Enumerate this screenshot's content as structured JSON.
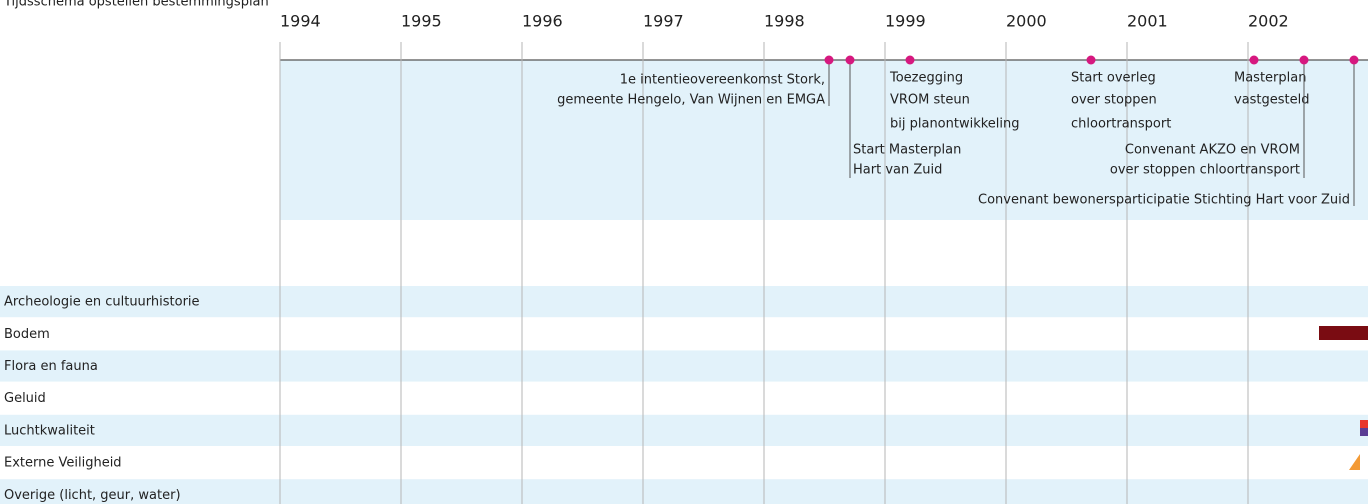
{
  "title": "Tijdsschema opstellen bestemmingsplan",
  "years": [
    "1994",
    "1995",
    "1996",
    "1997",
    "1998",
    "1999",
    "2000",
    "2001",
    "2002"
  ],
  "events": [
    {
      "lines": [
        "1e intentieovereenkomst Stork,",
        "gemeente Hengelo, Van Wijnen en EMGA"
      ]
    },
    {
      "lines": [
        "Start Masterplan",
        "Hart van Zuid"
      ]
    },
    {
      "lines": [
        "Toezegging",
        "VROM steun",
        "bij planontwikkeling"
      ]
    },
    {
      "lines": [
        "Start overleg",
        "over stoppen",
        "chloortransport"
      ]
    },
    {
      "lines": [
        "Masterplan",
        "vastgesteld"
      ]
    },
    {
      "lines": [
        "Convenant AKZO en VROM",
        "over stoppen chloortransport"
      ]
    },
    {
      "lines": [
        "Convenant bewonersparticipatie Stichting Hart voor Zuid"
      ]
    }
  ],
  "rows": [
    "Archeologie en cultuurhistorie",
    "Bodem",
    "Flora en fauna",
    "Geluid",
    "Luchtkwaliteit",
    "Externe Veiligheid",
    "Overige (licht, geur, water)"
  ]
}
